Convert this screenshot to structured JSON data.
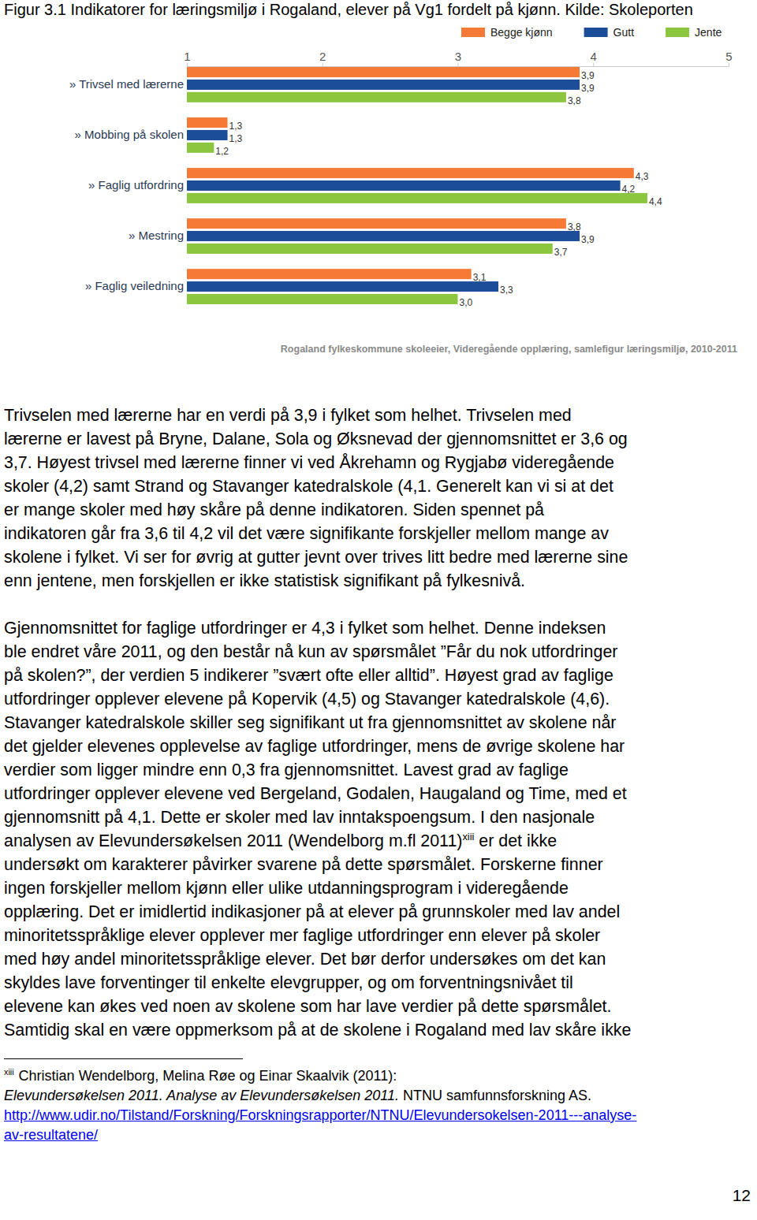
{
  "caption": "Figur 3.1 Indikatorer for læringsmiljø i Rogaland, elever på Vg1 fordelt på kjønn. Kilde: Skoleporten",
  "chart_data": {
    "type": "bar",
    "orientation": "horizontal",
    "categories": [
      "» Trivsel med lærerne",
      "» Mobbing på skolen",
      "» Faglig utfordring",
      "» Mestring",
      "» Faglig veiledning"
    ],
    "series": [
      {
        "name": "Begge kjønn",
        "color": "#f47a36",
        "values": [
          3.9,
          1.3,
          4.3,
          3.8,
          3.1
        ],
        "value_labels": [
          "3,9",
          "1,3",
          "4,3",
          "3,8",
          "3,1"
        ]
      },
      {
        "name": "Gutt",
        "color": "#1c4d99",
        "values": [
          3.9,
          1.3,
          4.2,
          3.9,
          3.3
        ],
        "value_labels": [
          "3,9",
          "1,3",
          "4,2",
          "3,9",
          "3,3"
        ]
      },
      {
        "name": "Jente",
        "color": "#8cc63f",
        "values": [
          3.8,
          1.2,
          4.4,
          3.7,
          3.0
        ],
        "value_labels": [
          "3,8",
          "1,2",
          "4,4",
          "3,7",
          "3,0"
        ]
      }
    ],
    "xlim": [
      1,
      5
    ],
    "xticks": [
      1,
      2,
      3,
      4,
      5
    ],
    "grid": false,
    "legend": "top-right",
    "data_labels": true,
    "annotations": [
      "Rogaland fylkeskommune skoleeier, Videregående opplæring, samlefigur læringsmiljø, 2010-2011"
    ]
  },
  "paragraphs": [
    [
      "Trivselen med lærerne har en verdi på 3,9 i fylket som helhet. Trivselen med",
      "lærerne er lavest på Bryne, Dalane, Sola og Øksnevad der gjennomsnittet er 3,6 og",
      "3,7. Høyest trivsel med lærerne finner vi ved Åkrehamn og Rygjabø videregående",
      "skoler (4,2) samt Strand og Stavanger katedralskole (4,1. Generelt kan vi si at det",
      "er mange skoler med høy skåre på denne indikatoren. Siden spennet på",
      "indikatoren går fra 3,6 til 4,2 vil det være signifikante forskjeller mellom mange av",
      "skolene i fylket. Vi ser for øvrig at gutter jevnt over trives litt bedre med lærerne sine",
      "enn jentene, men forskjellen er ikke statistisk signifikant på fylkesnivå."
    ],
    [
      "Gjennomsnittet for faglige utfordringer er 4,3 i fylket som helhet. Denne indeksen",
      "ble endret våre 2011, og den består nå kun av spørsmålet ”Får du nok utfordringer",
      "på skolen?”, der verdien 5 indikerer ”svært ofte eller alltid”. Høyest grad av faglige",
      "utfordringer opplever elevene på Kopervik (4,5) og Stavanger katedralskole (4,6).",
      "Stavanger katedralskole skiller seg signifikant ut fra gjennomsnittet av skolene når",
      "det gjelder elevenes opplevelse av faglige utfordringer, mens de øvrige skolene har",
      "verdier som ligger mindre enn 0,3 fra gjennomsnittet. Lavest grad av faglige",
      "utfordringer opplever elevene ved Bergeland, Godalen, Haugaland og Time, med et",
      "gjennomsnitt på 4,1. Dette er skoler med lav inntakspoengsum. I den nasjonale",
      {
        "before": "analysen av Elevundersøkelsen 2011 (Wendelborg m.fl 2011)",
        "sup": "xiii",
        "after": " er det ikke"
      },
      "undersøkt om karakterer påvirker svarene på dette spørsmålet. Forskerne finner",
      "ingen forskjeller mellom kjønn eller ulike utdanningsprogram i videregående",
      "opplæring. Det er imidlertid indikasjoner på at elever på grunnskoler med lav andel",
      "minoritetsspråklige elever opplever mer faglige utfordringer enn elever på skoler",
      "med høy andel minoritetsspråklige elever. Det bør derfor undersøkes om det kan",
      "skyldes lave forventinger til enkelte elevgrupper, og om forventningsnivået til",
      "elevene kan økes ved noen av skolene som har lave verdier på dette spørsmålet.",
      "Samtidig skal en være oppmerksom på at de skolene i Rogaland med lav skåre ikke"
    ]
  ],
  "footnote": {
    "marker": "xiii",
    "author": "Christian Wendelborg, Melina Røe og Einar Skaalvik (2011):",
    "title": "Elevundersøkelsen 2011. Analyse av Elevundersøkelsen 2011.",
    "publisher": "NTNU samfunnsforskning AS.",
    "url_lines": [
      "http://www.udir.no/Tilstand/Forskning/Forskningsrapporter/NTNU/Elevundersokelsen-2011---analyse-",
      "av-resultatene/"
    ]
  },
  "page_number": "12"
}
